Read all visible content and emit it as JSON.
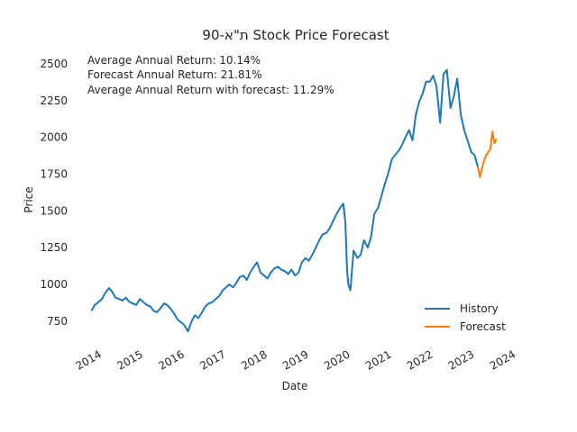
{
  "chart_data": {
    "type": "line",
    "title": "ת\"א-90 Stock Price Forecast",
    "xlabel": "Date",
    "ylabel": "Price",
    "xlim": [
      2013.75,
      2024.2
    ],
    "ylim": [
      620,
      2580
    ],
    "x_ticks": [
      2014,
      2015,
      2016,
      2017,
      2018,
      2019,
      2020,
      2021,
      2022,
      2023,
      2024
    ],
    "x_tick_labels": [
      "2014",
      "2015",
      "2016",
      "2017",
      "2018",
      "2019",
      "2020",
      "2021",
      "2022",
      "2023",
      "2024"
    ],
    "y_ticks": [
      750,
      1000,
      1250,
      1500,
      1750,
      2000,
      2250,
      2500
    ],
    "y_tick_labels": [
      "750",
      "1000",
      "1250",
      "1500",
      "1750",
      "2000",
      "2250",
      "2500"
    ],
    "annotations": [
      "Average Annual Return: 10.14%",
      "Forecast Annual Return: 21.81%",
      "Average Annual Return with forecast: 11.29%"
    ],
    "legend_position": "lower-right",
    "grid": false,
    "series": [
      {
        "name": "History",
        "color": "#1f77b4",
        "x": [
          2014.0,
          2014.08,
          2014.17,
          2014.25,
          2014.33,
          2014.42,
          2014.5,
          2014.58,
          2014.67,
          2014.75,
          2014.83,
          2014.92,
          2015.0,
          2015.08,
          2015.17,
          2015.25,
          2015.33,
          2015.42,
          2015.5,
          2015.58,
          2015.67,
          2015.75,
          2015.83,
          2015.92,
          2016.0,
          2016.08,
          2016.17,
          2016.25,
          2016.33,
          2016.42,
          2016.5,
          2016.58,
          2016.67,
          2016.75,
          2016.83,
          2016.92,
          2017.0,
          2017.08,
          2017.17,
          2017.25,
          2017.33,
          2017.42,
          2017.5,
          2017.58,
          2017.67,
          2017.75,
          2017.83,
          2017.92,
          2018.0,
          2018.08,
          2018.17,
          2018.25,
          2018.33,
          2018.42,
          2018.5,
          2018.58,
          2018.67,
          2018.75,
          2018.83,
          2018.92,
          2019.0,
          2019.08,
          2019.17,
          2019.25,
          2019.33,
          2019.42,
          2019.5,
          2019.58,
          2019.67,
          2019.75,
          2019.83,
          2019.92,
          2020.0,
          2020.08,
          2020.13,
          2020.17,
          2020.2,
          2020.25,
          2020.33,
          2020.42,
          2020.5,
          2020.58,
          2020.67,
          2020.75,
          2020.83,
          2020.92,
          2021.0,
          2021.08,
          2021.17,
          2021.25,
          2021.33,
          2021.42,
          2021.5,
          2021.58,
          2021.67,
          2021.75,
          2021.83,
          2021.92,
          2022.0,
          2022.08,
          2022.17,
          2022.25,
          2022.33,
          2022.42,
          2022.5,
          2022.58,
          2022.67,
          2022.75,
          2022.83,
          2022.92,
          2023.0,
          2023.08,
          2023.17,
          2023.25,
          2023.33
        ],
        "values": [
          820,
          860,
          880,
          900,
          940,
          975,
          950,
          910,
          900,
          890,
          910,
          880,
          870,
          860,
          900,
          880,
          860,
          850,
          820,
          810,
          840,
          870,
          860,
          830,
          800,
          760,
          740,
          720,
          680,
          750,
          790,
          770,
          810,
          850,
          870,
          880,
          900,
          920,
          960,
          980,
          1000,
          980,
          1010,
          1050,
          1060,
          1030,
          1080,
          1120,
          1150,
          1080,
          1060,
          1040,
          1080,
          1110,
          1120,
          1100,
          1090,
          1070,
          1100,
          1060,
          1080,
          1150,
          1180,
          1160,
          1200,
          1250,
          1300,
          1340,
          1350,
          1380,
          1430,
          1480,
          1520,
          1550,
          1420,
          1100,
          1000,
          960,
          1230,
          1180,
          1200,
          1300,
          1250,
          1320,
          1480,
          1520,
          1600,
          1680,
          1760,
          1850,
          1880,
          1910,
          1950,
          2000,
          2050,
          1980,
          2150,
          2250,
          2300,
          2380,
          2380,
          2420,
          2350,
          2100,
          2430,
          2460,
          2200,
          2280,
          2400,
          2150,
          2050,
          1980,
          1900,
          1880,
          1800
        ]
      },
      {
        "name": "Forecast",
        "color": "#ff7f0e",
        "x": [
          2023.33,
          2023.38,
          2023.43,
          2023.48,
          2023.53,
          2023.58,
          2023.63,
          2023.68,
          2023.73,
          2023.78
        ],
        "values": [
          1800,
          1730,
          1790,
          1840,
          1880,
          1900,
          1920,
          2040,
          1960,
          1990
        ]
      }
    ]
  }
}
